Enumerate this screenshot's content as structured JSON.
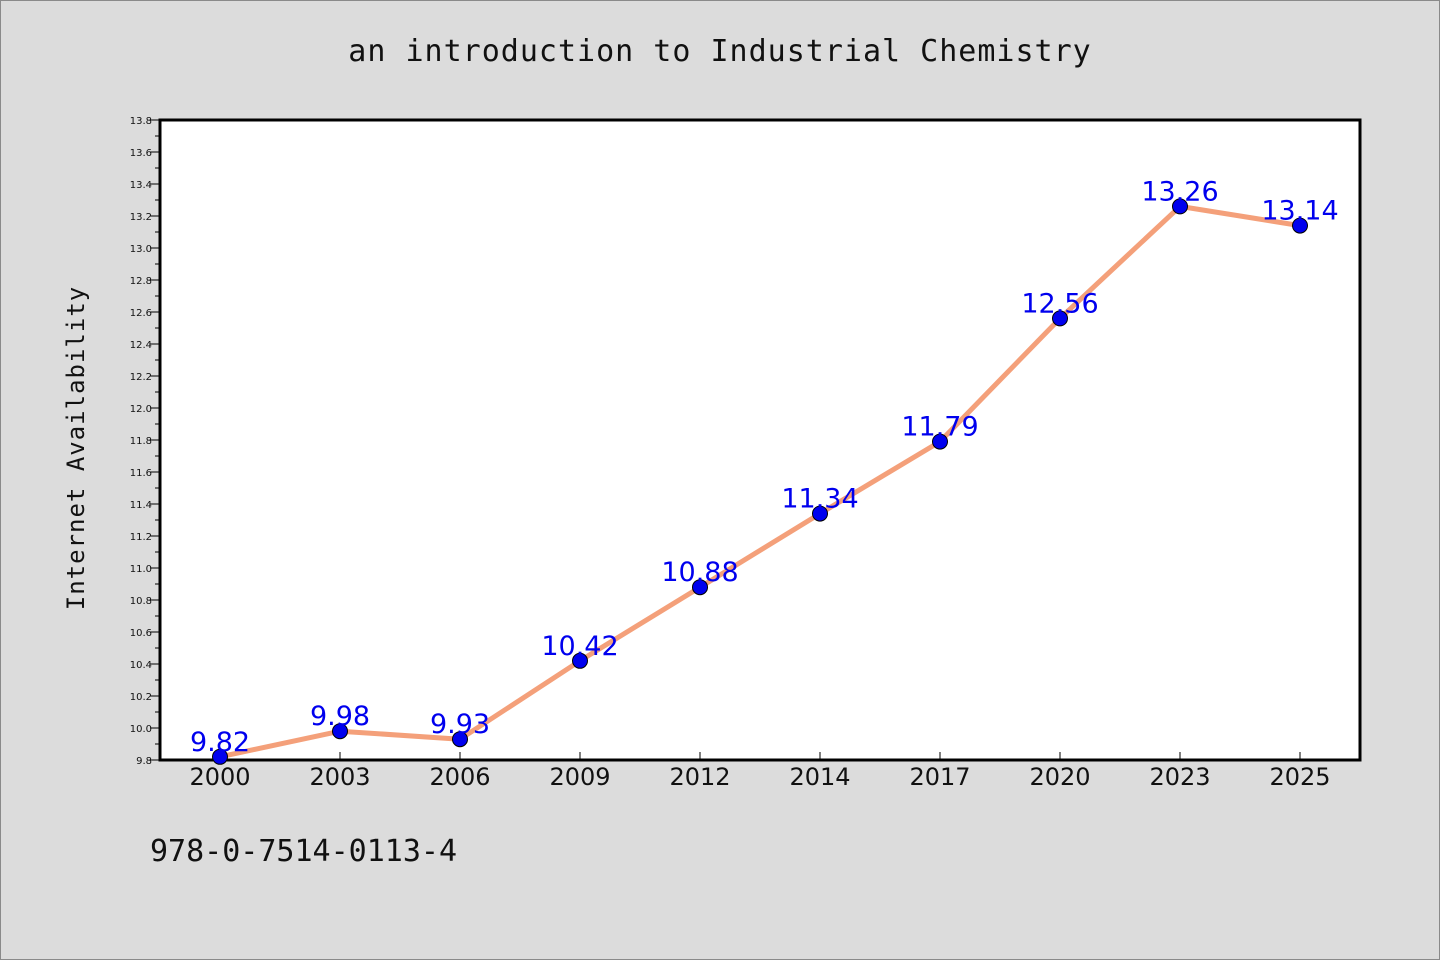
{
  "header": {
    "title": "an introduction to Industrial Chemistry"
  },
  "footer": {
    "isbn": "978-0-7514-0113-4"
  },
  "chart_data": {
    "type": "line",
    "title": "an introduction to Industrial Chemistry",
    "xlabel": "",
    "ylabel": "Internet Availability",
    "categories": [
      "2000",
      "2003",
      "2006",
      "2009",
      "2012",
      "2014",
      "2017",
      "2020",
      "2023",
      "2025"
    ],
    "series": [
      {
        "values": [
          9.82,
          9.98,
          9.93,
          10.42,
          10.88,
          11.34,
          11.79,
          12.56,
          13.26,
          13.14
        ]
      }
    ],
    "ylim": [
      9.8,
      13.8
    ],
    "ytick_step": 0.2,
    "grid": false,
    "data_labels": true,
    "colors": {
      "line": "#f4a07a",
      "marker": "#0000ee",
      "label": "#0000ee",
      "background": "#dcdcdc",
      "plot_bg": "#ffffff"
    }
  }
}
